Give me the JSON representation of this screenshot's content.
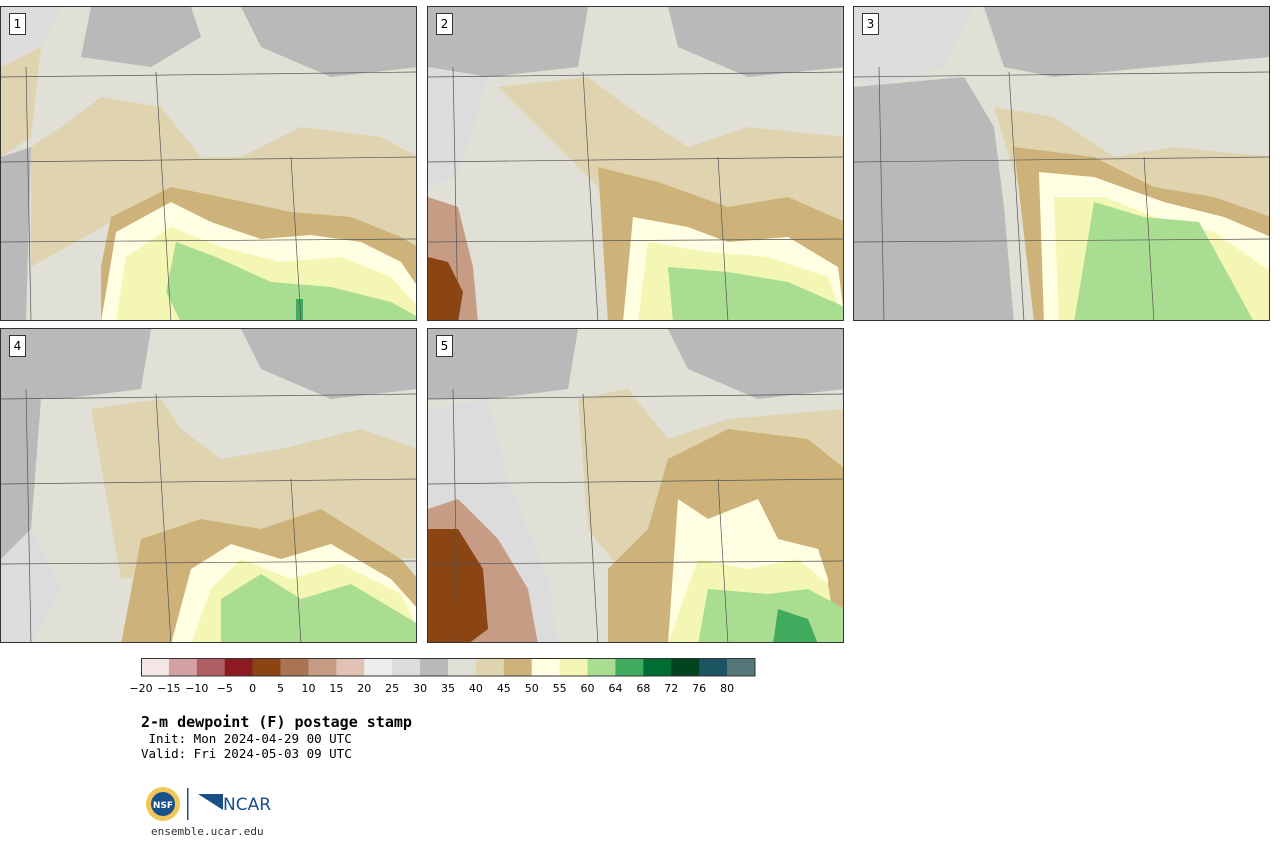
{
  "panels": [
    {
      "label": "1"
    },
    {
      "label": "2"
    },
    {
      "label": "3"
    },
    {
      "label": "4"
    },
    {
      "label": "5"
    }
  ],
  "colorbar": {
    "ticks": [
      "−20",
      "−15",
      "−10",
      "−5",
      "0",
      "5",
      "10",
      "15",
      "20",
      "25",
      "30",
      "35",
      "40",
      "45",
      "50",
      "55",
      "60",
      "64",
      "68",
      "72",
      "76",
      "80"
    ],
    "colors": [
      "#f3e6e4",
      "#d3a1a4",
      "#ae5e63",
      "#8b1a21",
      "#8b4513",
      "#aa7452",
      "#c69c84",
      "#dfc2b4",
      "#ededed",
      "#dcdcdc",
      "#b9b9b9",
      "#e0e0d6",
      "#e0d4b0",
      "#cdb37a",
      "#fffde2",
      "#f4f7b4",
      "#a9dd91",
      "#41ab5d",
      "#006d35",
      "#00431f",
      "#1d5461",
      "#56777a"
    ]
  },
  "title": "2-m dewpoint (F) postage stamp",
  "init_line": " Init: Mon 2024-04-29 00 UTC",
  "valid_line": "Valid: Fri 2024-05-03 09 UTC",
  "logos": {
    "nsf": "NSF",
    "ncar": "NCAR"
  },
  "site": "ensemble.ucar.edu"
}
